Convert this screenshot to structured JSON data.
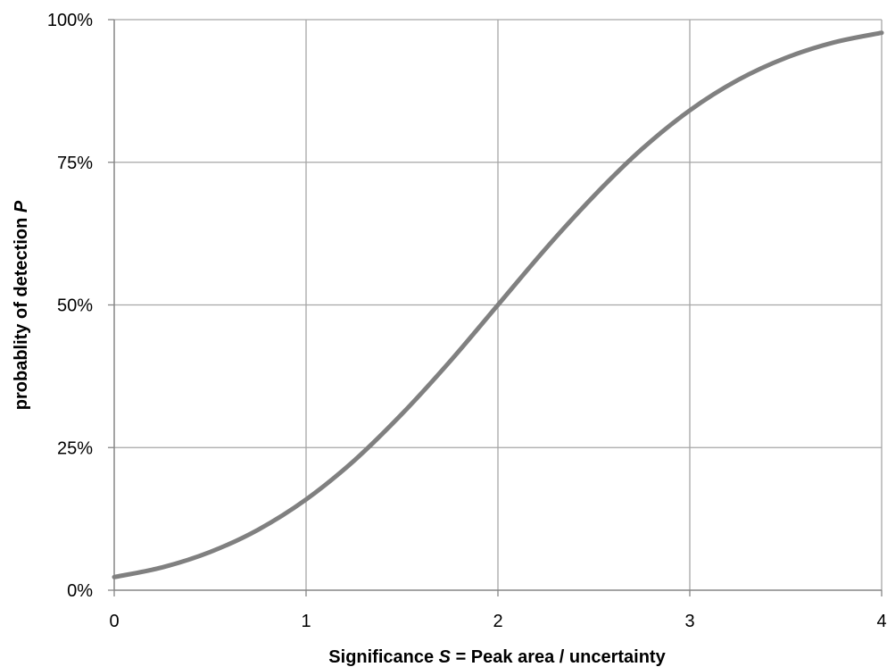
{
  "chart_data": {
    "type": "line",
    "title": "",
    "xlabel": {
      "before": "Significance ",
      "symbol": "S",
      "after": " = Peak area / uncertainty"
    },
    "ylabel": {
      "before": "probablity of detection ",
      "symbol": "P"
    },
    "xlim": [
      0,
      4
    ],
    "ylim": [
      0,
      100
    ],
    "x_ticks": [
      {
        "value": 0,
        "label": "0"
      },
      {
        "value": 1,
        "label": "1"
      },
      {
        "value": 2,
        "label": "2"
      },
      {
        "value": 3,
        "label": "3"
      },
      {
        "value": 4,
        "label": "4"
      }
    ],
    "y_ticks": [
      {
        "value": 0,
        "label": "0%"
      },
      {
        "value": 25,
        "label": "25%"
      },
      {
        "value": 50,
        "label": "50%"
      },
      {
        "value": 75,
        "label": "75%"
      },
      {
        "value": 100,
        "label": "100%"
      }
    ],
    "grid": true,
    "legend": "none",
    "series": [
      {
        "color": "#808080",
        "x": [
          0,
          0.25,
          0.5,
          0.75,
          1,
          1.25,
          1.5,
          1.75,
          2,
          2.25,
          2.5,
          2.75,
          3,
          3.25,
          3.5,
          3.75,
          4
        ],
        "y": [
          2.3,
          4.0,
          6.7,
          10.6,
          15.9,
          22.7,
          30.9,
          40.1,
          50.0,
          59.9,
          69.1,
          77.3,
          84.1,
          89.4,
          93.3,
          96.0,
          97.7
        ]
      }
    ],
    "colors": {
      "grid": "#a6a6a6",
      "axis": "#868686",
      "line": "#808080"
    }
  }
}
